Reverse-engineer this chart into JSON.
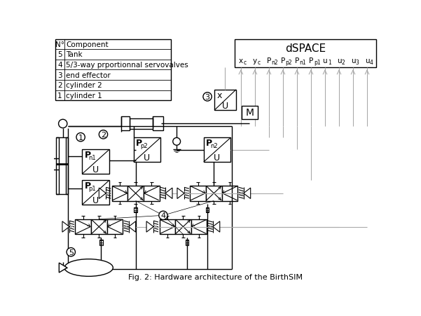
{
  "title": "Fig. 2: Hardware architecture of the BirthSIM",
  "table_data": [
    [
      "N°",
      "Component"
    ],
    [
      "5",
      "Tank"
    ],
    [
      "4",
      "5/3-way prportionnal servovalves"
    ],
    [
      "3",
      "end effector"
    ],
    [
      "2",
      "cylinder 2"
    ],
    [
      "1",
      "cylinder 1"
    ]
  ],
  "dspace_label": "dSPACE",
  "signals": [
    [
      "x",
      "c"
    ],
    [
      "y",
      "c"
    ],
    [
      "P",
      "n2"
    ],
    [
      "P",
      "p2"
    ],
    [
      "P",
      "n1"
    ],
    [
      "P",
      "p1"
    ],
    [
      "u",
      "1"
    ],
    [
      "u",
      "2"
    ],
    [
      "u",
      "3"
    ],
    [
      "u",
      "4"
    ]
  ],
  "gray_line": "#aaaaaa",
  "black": "#000000",
  "white": "#ffffff"
}
